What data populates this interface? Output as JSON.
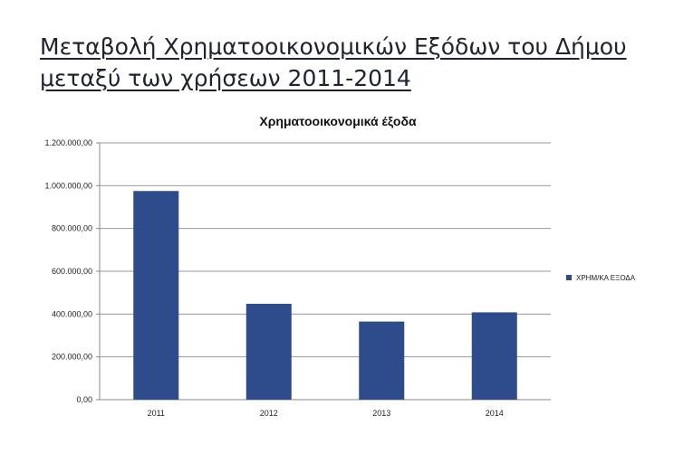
{
  "page": {
    "title_line1": "Μεταβολή Χρηματοοικονομικών Εξόδων του Δήμου",
    "title_line2": "μεταξύ των χρήσεων 2011-2014"
  },
  "chart_data": {
    "type": "bar",
    "title": "Χρηματοοικονομικά έξοδα",
    "categories": [
      "2011",
      "2012",
      "2013",
      "2014"
    ],
    "series": [
      {
        "name": "ΧΡΗΜ/ΚΑ ΕΞΟΔΑ",
        "values": [
          975000,
          448000,
          365000,
          408000
        ],
        "color": "#2e4b8c"
      }
    ],
    "ylim": [
      0,
      1200000
    ],
    "yticks": [
      0,
      200000,
      400000,
      600000,
      800000,
      1000000,
      1200000
    ],
    "ytick_labels": [
      "0,00",
      "200.000,00",
      "400.000,00",
      "600.000,00",
      "800.000,00",
      "1.000.000,00",
      "1.200.000,00"
    ],
    "grid": true,
    "legend_position": "right"
  }
}
